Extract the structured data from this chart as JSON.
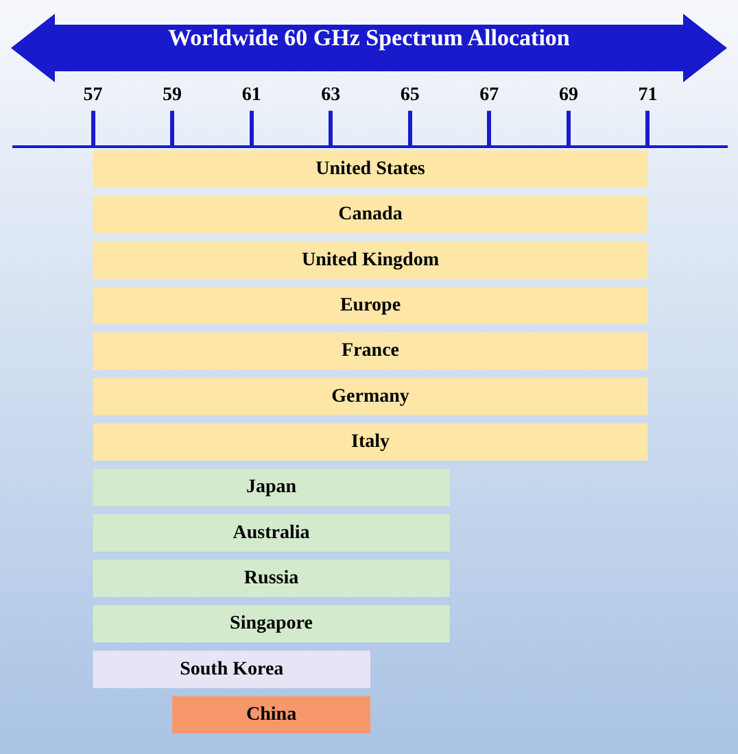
{
  "chart_data": {
    "type": "bar",
    "orientation": "horizontal",
    "title": "Worldwide 60 GHz Spectrum Allocation",
    "categories": [
      "United States",
      "Canada",
      "United Kingdom",
      "Europe",
      "France",
      "Germany",
      "Italy",
      "Japan",
      "Australia",
      "Russia",
      "Singapore",
      "South Korea",
      "China"
    ],
    "base": [
      57,
      57,
      57,
      57,
      57,
      57,
      57,
      57,
      57,
      57,
      57,
      57,
      59
    ],
    "values": [
      14,
      14,
      14,
      14,
      14,
      14,
      14,
      9,
      9,
      9,
      9,
      7,
      5
    ],
    "colors": [
      "#fde6a6",
      "#fde6a6",
      "#fde6a6",
      "#fde6a6",
      "#fde6a6",
      "#fde6a6",
      "#fde6a6",
      "#d3ebcc",
      "#d3ebcc",
      "#d3ebcc",
      "#d3ebcc",
      "#e9e4f5",
      "#f7976a"
    ],
    "xlim": [
      55,
      73
    ],
    "xticks": [
      57,
      59,
      61,
      63,
      65,
      67,
      69,
      71
    ],
    "grid": false,
    "legend": false
  }
}
